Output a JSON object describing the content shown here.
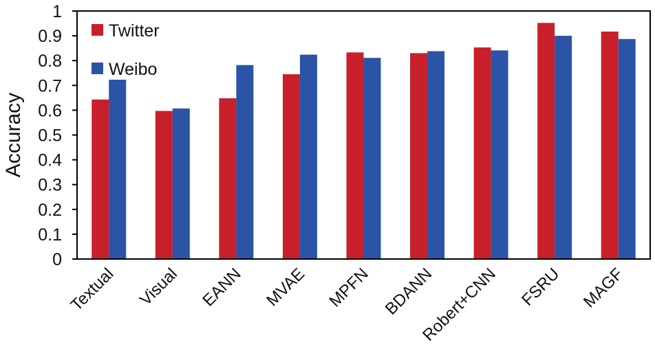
{
  "chart_data": {
    "type": "bar",
    "title": "",
    "xlabel": "",
    "ylabel": "Accuracy",
    "ylim": [
      0,
      1
    ],
    "yticks": [
      "0",
      "0.1",
      "0.2",
      "0.3",
      "0.4",
      "0.5",
      "0.6",
      "0.7",
      "0.8",
      "0.9",
      "1"
    ],
    "grid": false,
    "legend_position": "top-left",
    "categories": [
      "Textual",
      "Visual",
      "EANN",
      "MVAE",
      "MPFN",
      "BDANN",
      "Robert+CNN",
      "FSRU",
      "MAGF"
    ],
    "series": [
      {
        "name": "Twitter",
        "color": "#c8202a",
        "values": [
          0.643,
          0.597,
          0.648,
          0.745,
          0.833,
          0.83,
          0.853,
          0.952,
          0.917
        ]
      },
      {
        "name": "Weibo",
        "color": "#2b54a6",
        "values": [
          0.723,
          0.607,
          0.782,
          0.824,
          0.811,
          0.838,
          0.841,
          0.9,
          0.887
        ]
      }
    ]
  }
}
